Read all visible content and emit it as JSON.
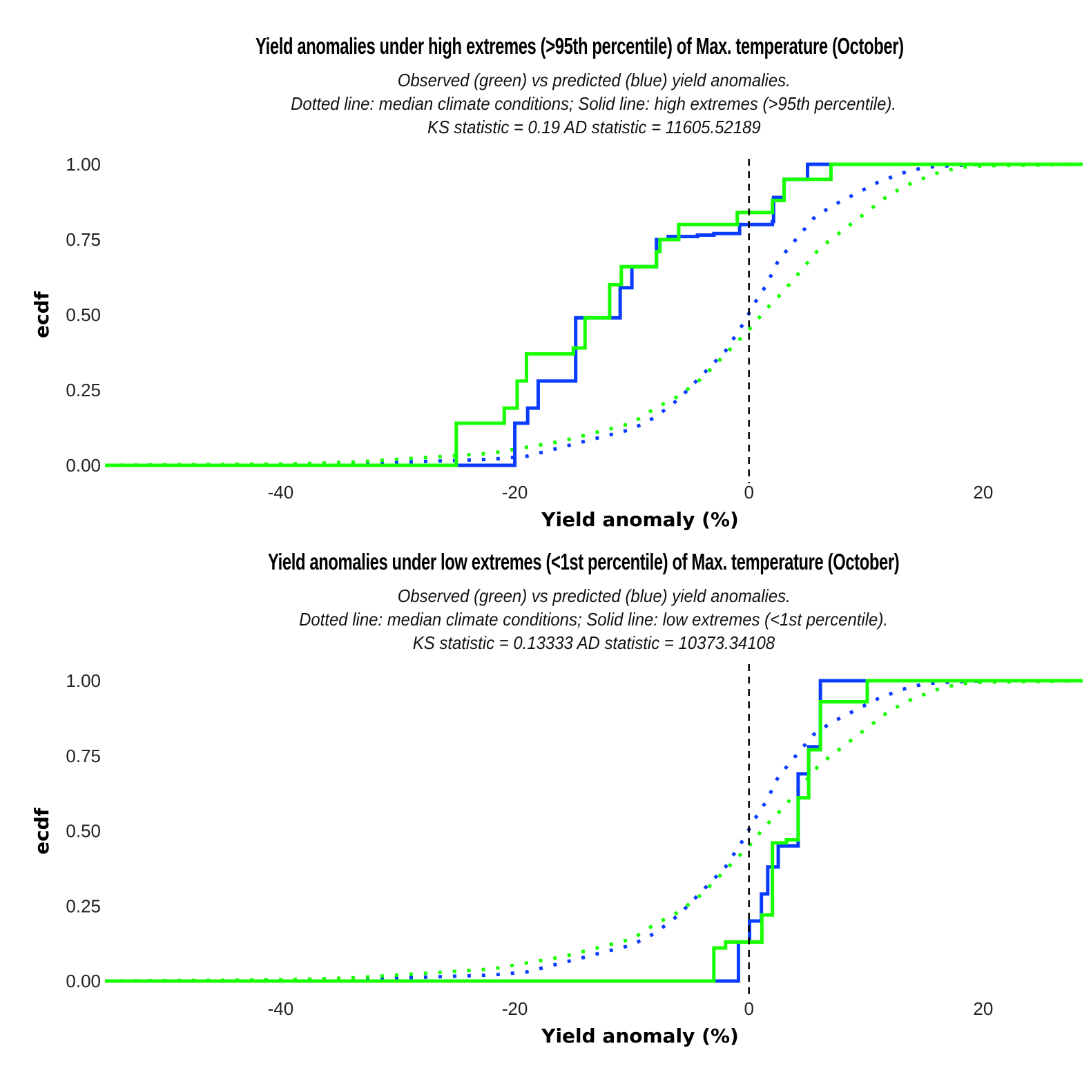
{
  "chart_data": [
    {
      "type": "line",
      "subtype": "ecdf-step",
      "title": "Yield anomalies under high extremes (>95th percentile) of Max. temperature (October)",
      "subtitle_lines": [
        "Observed (green) vs predicted (blue) yield anomalies.",
        "Dotted line: median climate conditions; Solid line: high extremes (>95th percentile).",
        "KS statistic = 0.19   AD statistic = 11605.52189"
      ],
      "xlabel": "Yield anomaly (%)",
      "ylabel": "ecdf",
      "xlim": [
        -55,
        28.5
      ],
      "ylim": [
        0,
        1
      ],
      "xticks": [
        -40,
        -20,
        0,
        20
      ],
      "xtick_labels": [
        "-40",
        "-20",
        "0",
        "20"
      ],
      "yticks": [
        0,
        0.25,
        0.5,
        0.75,
        1
      ],
      "ytick_labels": [
        "0.00",
        "0.25",
        "0.50",
        "0.75",
        "1.00"
      ],
      "vline_x": 0,
      "grid": false,
      "colors": {
        "observed": "#17ff00",
        "predicted": "#0a3cff",
        "vline": "#000000"
      },
      "series": [
        {
          "name": "Predicted - high extremes",
          "style": "solid",
          "color": "#0a3cff",
          "steps": [
            [
              -55,
              0
            ],
            [
              -20.0,
              0.14
            ],
            [
              -18.9,
              0.19
            ],
            [
              -18.0,
              0.28
            ],
            [
              -14.8,
              0.49
            ],
            [
              -11.0,
              0.59
            ],
            [
              -10.0,
              0.66
            ],
            [
              -7.9,
              0.75
            ],
            [
              -6.9,
              0.76
            ],
            [
              -4.4,
              0.765
            ],
            [
              -3.0,
              0.77
            ],
            [
              -0.8,
              0.8
            ],
            [
              2.0,
              0.81
            ],
            [
              2.1,
              0.89
            ],
            [
              3.0,
              0.95
            ],
            [
              5.0,
              1.0
            ],
            [
              28.5,
              1.0
            ]
          ]
        },
        {
          "name": "Observed - high extremes",
          "style": "solid",
          "color": "#17ff00",
          "steps": [
            [
              -55,
              0
            ],
            [
              -25.0,
              0.14
            ],
            [
              -20.9,
              0.19
            ],
            [
              -19.8,
              0.28
            ],
            [
              -19.0,
              0.37
            ],
            [
              -15.0,
              0.39
            ],
            [
              -14.0,
              0.49
            ],
            [
              -11.9,
              0.6
            ],
            [
              -10.9,
              0.66
            ],
            [
              -7.9,
              0.71
            ],
            [
              -7.6,
              0.75
            ],
            [
              -6.0,
              0.8
            ],
            [
              -1.0,
              0.84
            ],
            [
              2.0,
              0.88
            ],
            [
              3.0,
              0.95
            ],
            [
              7.0,
              1.0
            ],
            [
              28.5,
              1.0
            ]
          ]
        },
        {
          "name": "Predicted - median conditions",
          "style": "dotted",
          "color": "#0a3cff",
          "points": [
            [
              -55,
              0
            ],
            [
              -40,
              0.002
            ],
            [
              -34,
              0.005
            ],
            [
              -30,
              0.01
            ],
            [
              -26,
              0.015
            ],
            [
              -22,
              0.02
            ],
            [
              -19,
              0.03
            ],
            [
              -16,
              0.06
            ],
            [
              -13,
              0.09
            ],
            [
              -10,
              0.12
            ],
            [
              -8,
              0.16
            ],
            [
              -6,
              0.22
            ],
            [
              -4,
              0.3
            ],
            [
              -2,
              0.38
            ],
            [
              -0.5,
              0.47
            ],
            [
              0.5,
              0.54
            ],
            [
              1.5,
              0.6
            ],
            [
              2.5,
              0.68
            ],
            [
              4,
              0.75
            ],
            [
              5.5,
              0.82
            ],
            [
              7,
              0.86
            ],
            [
              9,
              0.9
            ],
            [
              11,
              0.94
            ],
            [
              13,
              0.97
            ],
            [
              15,
              0.99
            ],
            [
              17,
              0.995
            ],
            [
              20,
              1.0
            ],
            [
              28.5,
              1.0
            ]
          ]
        },
        {
          "name": "Observed - median conditions",
          "style": "dotted",
          "color": "#17ff00",
          "points": [
            [
              -55,
              0
            ],
            [
              -40,
              0.004
            ],
            [
              -34,
              0.01
            ],
            [
              -30,
              0.02
            ],
            [
              -26,
              0.03
            ],
            [
              -22,
              0.04
            ],
            [
              -19,
              0.06
            ],
            [
              -16,
              0.08
            ],
            [
              -13,
              0.11
            ],
            [
              -10,
              0.14
            ],
            [
              -8,
              0.19
            ],
            [
              -6,
              0.23
            ],
            [
              -4,
              0.29
            ],
            [
              -2,
              0.37
            ],
            [
              0,
              0.45
            ],
            [
              1.5,
              0.52
            ],
            [
              3,
              0.58
            ],
            [
              4.5,
              0.65
            ],
            [
              6,
              0.72
            ],
            [
              8,
              0.78
            ],
            [
              10,
              0.84
            ],
            [
              12,
              0.9
            ],
            [
              14,
              0.94
            ],
            [
              16,
              0.97
            ],
            [
              18,
              0.99
            ],
            [
              20,
              0.995
            ],
            [
              28.5,
              1.0
            ]
          ]
        }
      ]
    },
    {
      "type": "line",
      "subtype": "ecdf-step",
      "title": "Yield anomalies under low extremes (<1st percentile) of Max. temperature (October)",
      "subtitle_lines": [
        "Observed (green) vs predicted (blue) yield anomalies.",
        "Dotted line: median climate conditions; Solid line: low extremes (<1st percentile).",
        "KS statistic = 0.13333   AD statistic = 10373.34108"
      ],
      "xlabel": "Yield anomaly (%)",
      "ylabel": "ecdf",
      "xlim": [
        -55,
        28.5
      ],
      "ylim": [
        0,
        1
      ],
      "xticks": [
        -40,
        -20,
        0,
        20
      ],
      "xtick_labels": [
        "-40",
        "-20",
        "0",
        "20"
      ],
      "yticks": [
        0,
        0.25,
        0.5,
        0.75,
        1
      ],
      "ytick_labels": [
        "0.00",
        "0.25",
        "0.50",
        "0.75",
        "1.00"
      ],
      "vline_x": 0,
      "grid": false,
      "colors": {
        "observed": "#17ff00",
        "predicted": "#0a3cff",
        "vline": "#000000"
      },
      "series": [
        {
          "name": "Predicted - low extremes",
          "style": "solid",
          "color": "#0a3cff",
          "steps": [
            [
              -55,
              0
            ],
            [
              -0.9,
              0.13
            ],
            [
              0.05,
              0.2
            ],
            [
              1.06,
              0.29
            ],
            [
              1.6,
              0.38
            ],
            [
              2.5,
              0.45
            ],
            [
              4.2,
              0.69
            ],
            [
              5.1,
              0.78
            ],
            [
              6.1,
              1.0
            ],
            [
              28.5,
              1.0
            ]
          ]
        },
        {
          "name": "Observed - low extremes",
          "style": "solid",
          "color": "#17ff00",
          "steps": [
            [
              -55,
              0
            ],
            [
              -3.0,
              0.11
            ],
            [
              -2.0,
              0.13
            ],
            [
              1.1,
              0.22
            ],
            [
              2.0,
              0.46
            ],
            [
              3.2,
              0.47
            ],
            [
              4.2,
              0.61
            ],
            [
              5.1,
              0.77
            ],
            [
              6.1,
              0.93
            ],
            [
              10.1,
              1.0
            ],
            [
              28.5,
              1.0
            ]
          ]
        },
        {
          "name": "Predicted - median conditions",
          "style": "dotted",
          "color": "#0a3cff",
          "points": [
            [
              -55,
              0
            ],
            [
              -40,
              0.002
            ],
            [
              -34,
              0.005
            ],
            [
              -30,
              0.01
            ],
            [
              -26,
              0.015
            ],
            [
              -22,
              0.02
            ],
            [
              -19,
              0.03
            ],
            [
              -16,
              0.06
            ],
            [
              -13,
              0.09
            ],
            [
              -10,
              0.12
            ],
            [
              -8,
              0.16
            ],
            [
              -6,
              0.22
            ],
            [
              -4,
              0.3
            ],
            [
              -2,
              0.38
            ],
            [
              -0.5,
              0.47
            ],
            [
              0.5,
              0.54
            ],
            [
              1.5,
              0.6
            ],
            [
              2.5,
              0.68
            ],
            [
              4,
              0.75
            ],
            [
              5.5,
              0.82
            ],
            [
              7,
              0.86
            ],
            [
              9,
              0.9
            ],
            [
              11,
              0.94
            ],
            [
              13,
              0.97
            ],
            [
              15,
              0.99
            ],
            [
              17,
              0.995
            ],
            [
              20,
              1.0
            ],
            [
              28.5,
              1.0
            ]
          ]
        },
        {
          "name": "Observed - median conditions",
          "style": "dotted",
          "color": "#17ff00",
          "points": [
            [
              -55,
              0
            ],
            [
              -40,
              0.004
            ],
            [
              -34,
              0.01
            ],
            [
              -30,
              0.02
            ],
            [
              -26,
              0.03
            ],
            [
              -22,
              0.04
            ],
            [
              -19,
              0.06
            ],
            [
              -16,
              0.08
            ],
            [
              -13,
              0.11
            ],
            [
              -10,
              0.14
            ],
            [
              -8,
              0.19
            ],
            [
              -6,
              0.23
            ],
            [
              -4,
              0.29
            ],
            [
              -2,
              0.37
            ],
            [
              0,
              0.45
            ],
            [
              1.5,
              0.52
            ],
            [
              3,
              0.58
            ],
            [
              4.5,
              0.65
            ],
            [
              6,
              0.72
            ],
            [
              8,
              0.78
            ],
            [
              10,
              0.84
            ],
            [
              12,
              0.9
            ],
            [
              14,
              0.94
            ],
            [
              16,
              0.97
            ],
            [
              18,
              0.99
            ],
            [
              20,
              0.995
            ],
            [
              28.5,
              1.0
            ]
          ]
        }
      ]
    }
  ]
}
